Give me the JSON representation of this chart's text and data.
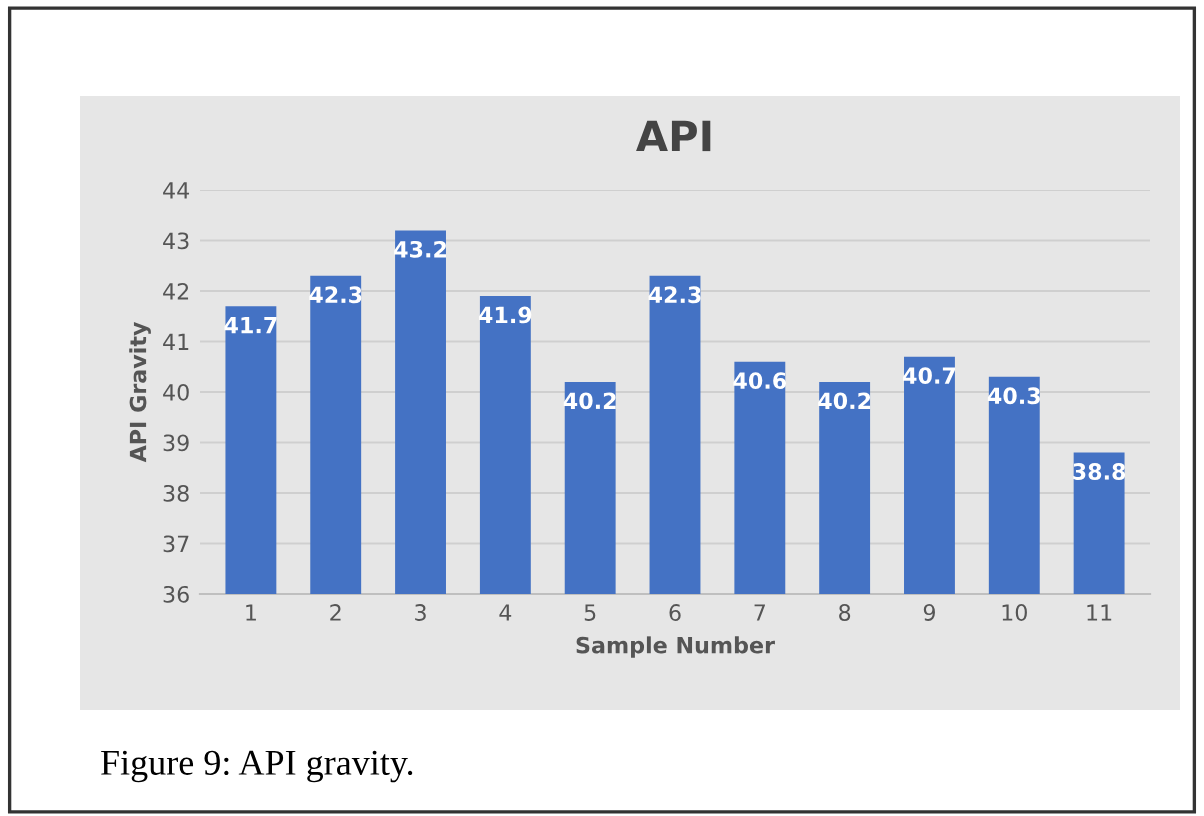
{
  "chart_data": {
    "type": "bar",
    "title": "API",
    "xlabel": "Sample Number",
    "ylabel": "API Gravity",
    "categories": [
      "1",
      "2",
      "3",
      "4",
      "5",
      "6",
      "7",
      "8",
      "9",
      "10",
      "11"
    ],
    "values": [
      41.7,
      42.3,
      43.2,
      41.9,
      40.2,
      42.3,
      40.6,
      40.2,
      40.7,
      40.3,
      38.8
    ],
    "color": "#4472c4",
    "ylim": [
      36,
      44
    ],
    "yticks": [
      36,
      37,
      38,
      39,
      40,
      41,
      42,
      43,
      44
    ],
    "grid": "y",
    "data_labels": true,
    "annotations": [
      "Figure 9: API gravity."
    ]
  }
}
